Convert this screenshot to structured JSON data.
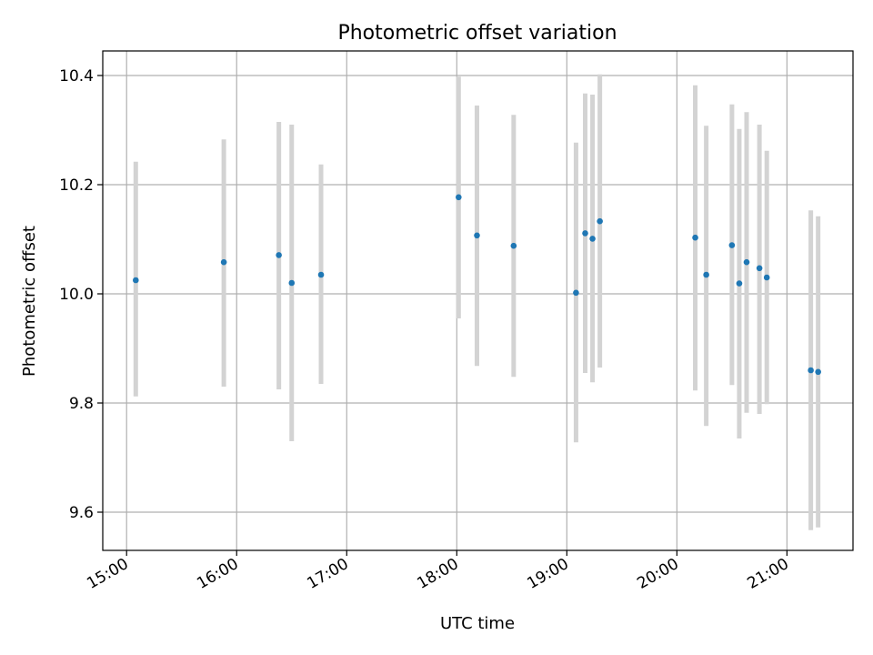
{
  "chart_data": {
    "type": "scatter",
    "title": "Photometric offset variation",
    "xlabel": "UTC time",
    "ylabel": "Photometric offset",
    "grid": true,
    "xlim": [
      "14:47",
      "21:36"
    ],
    "ylim": [
      9.53,
      10.445
    ],
    "x_ticks": [
      "15:00",
      "16:00",
      "17:00",
      "18:00",
      "19:00",
      "20:00",
      "21:00"
    ],
    "y_ticks": [
      9.6,
      9.8,
      10.0,
      10.2,
      10.4
    ],
    "y_tick_labels": [
      "9.6",
      "9.8",
      "10.0",
      "10.2",
      "10.4"
    ],
    "colors": {
      "point": "#1f77b4",
      "errorbar": "#d3d3d3",
      "grid": "#b0b0b0"
    },
    "series": [
      {
        "points": [
          {
            "x": "15:05",
            "y": 10.025,
            "ylow": 9.812,
            "yhigh": 10.242
          },
          {
            "x": "15:53",
            "y": 10.058,
            "ylow": 9.83,
            "yhigh": 10.283
          },
          {
            "x": "16:23",
            "y": 10.071,
            "ylow": 9.825,
            "yhigh": 10.315
          },
          {
            "x": "16:30",
            "y": 10.02,
            "ylow": 9.73,
            "yhigh": 10.31
          },
          {
            "x": "16:46",
            "y": 10.035,
            "ylow": 9.835,
            "yhigh": 10.237
          },
          {
            "x": "18:01",
            "y": 10.177,
            "ylow": 9.955,
            "yhigh": 10.398
          },
          {
            "x": "18:11",
            "y": 10.107,
            "ylow": 9.868,
            "yhigh": 10.345
          },
          {
            "x": "18:31",
            "y": 10.088,
            "ylow": 9.848,
            "yhigh": 10.328
          },
          {
            "x": "19:05",
            "y": 10.002,
            "ylow": 9.728,
            "yhigh": 10.277
          },
          {
            "x": "19:10",
            "y": 10.111,
            "ylow": 9.855,
            "yhigh": 10.367
          },
          {
            "x": "19:14",
            "y": 10.101,
            "ylow": 9.838,
            "yhigh": 10.365
          },
          {
            "x": "19:18",
            "y": 10.133,
            "ylow": 9.865,
            "yhigh": 10.402
          },
          {
            "x": "20:10",
            "y": 10.103,
            "ylow": 9.823,
            "yhigh": 10.382
          },
          {
            "x": "20:16",
            "y": 10.035,
            "ylow": 9.758,
            "yhigh": 10.308
          },
          {
            "x": "20:30",
            "y": 10.089,
            "ylow": 9.833,
            "yhigh": 10.347
          },
          {
            "x": "20:34",
            "y": 10.019,
            "ylow": 9.735,
            "yhigh": 10.302
          },
          {
            "x": "20:38",
            "y": 10.058,
            "ylow": 9.782,
            "yhigh": 10.333
          },
          {
            "x": "20:45",
            "y": 10.047,
            "ylow": 9.78,
            "yhigh": 10.31
          },
          {
            "x": "20:49",
            "y": 10.03,
            "ylow": 9.798,
            "yhigh": 10.262
          },
          {
            "x": "21:13",
            "y": 9.86,
            "ylow": 9.567,
            "yhigh": 10.153
          },
          {
            "x": "21:17",
            "y": 9.857,
            "ylow": 9.572,
            "yhigh": 10.142
          }
        ]
      }
    ]
  }
}
